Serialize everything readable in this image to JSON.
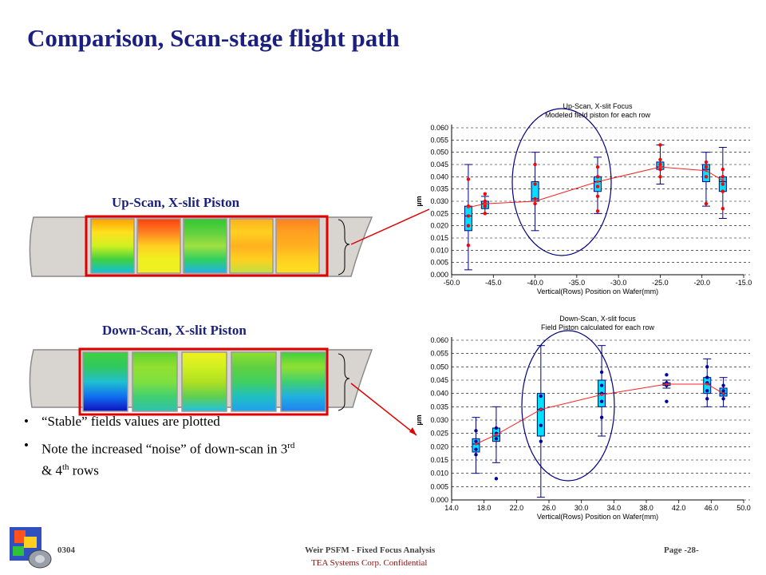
{
  "title": "Comparison, Scan-stage flight path",
  "upscan": {
    "label": "Up-Scan, X-slit Piston",
    "panels": [
      {
        "stops": [
          "#ffa000",
          "#ffe020",
          "#d0f020",
          "#40d040",
          "#10c0e0"
        ]
      },
      {
        "stops": [
          "#ff4010",
          "#ff8020",
          "#ffd020",
          "#f0f020",
          "#f0f020"
        ]
      },
      {
        "stops": [
          "#30c830",
          "#60d040",
          "#a0e040",
          "#30d060",
          "#20b0f0"
        ]
      },
      {
        "stops": [
          "#ffb020",
          "#ffd020",
          "#ffb020",
          "#ffd020",
          "#c0e040"
        ]
      },
      {
        "stops": [
          "#ff8020",
          "#ffa020",
          "#ffb020",
          "#ffd020",
          "#ffe020"
        ]
      }
    ]
  },
  "downscan": {
    "label": "Down-Scan, X-slit Piston",
    "panels": [
      {
        "stops": [
          "#40d040",
          "#30c860",
          "#20c0d0",
          "#1070f0",
          "#1010c0"
        ]
      },
      {
        "stops": [
          "#60d030",
          "#90e030",
          "#80e040",
          "#40d070",
          "#30c0b0"
        ]
      },
      {
        "stops": [
          "#f0f020",
          "#d0f020",
          "#b0e020",
          "#60d050",
          "#20c0e0"
        ]
      },
      {
        "stops": [
          "#90e030",
          "#60d040",
          "#40d060",
          "#20c0c0",
          "#20a0f0"
        ]
      },
      {
        "stops": [
          "#40d040",
          "#90e030",
          "#40d070",
          "#20b0e0",
          "#2080f0"
        ]
      }
    ]
  },
  "bullets": [
    {
      "text": "“Stable” fields values are plotted",
      "parts": []
    },
    {
      "text": "",
      "parts": [
        "Note the increased “noise” of down-scan in 3",
        "rd",
        " & 4",
        "th",
        " rows"
      ]
    }
  ],
  "footer": {
    "left": "0304",
    "center": "Weir PSFM - Fixed Focus Analysis",
    "confidential": "TEA Systems Corp. Confidential",
    "page": "Page -28-"
  },
  "colors": {
    "title": "#1a1f80",
    "highlight_box": "#e00000",
    "arrow": "#e00000",
    "box_fill": "#00e0ff",
    "box_stroke": "#000080",
    "upscan_points": "#ff0000",
    "downscan_points": "#0000a0",
    "ellipse": "#000080"
  },
  "chart_data": [
    {
      "type": "box",
      "title": "Up-Scan, X-slit Focus",
      "subtitle": "Modeled field piston for each row",
      "xlabel": "Vertical(Rows) Position on Wafer(mm)",
      "ylabel": "µm",
      "xlim": [
        -50.0,
        -15.0
      ],
      "ylim": [
        0.0,
        0.06
      ],
      "xticks": [
        "-50.0",
        "-45.0",
        "-40.0",
        "-35.0",
        "-30.0",
        "-25.0",
        "-20.0",
        "-15.0"
      ],
      "yticks": [
        "0.000",
        "0.005",
        "0.010",
        "0.015",
        "0.020",
        "0.025",
        "0.030",
        "0.035",
        "0.040",
        "0.045",
        "0.050",
        "0.055",
        "0.060"
      ],
      "grid": true,
      "boxes": [
        {
          "x": -48.0,
          "min": 0.002,
          "q1": 0.018,
          "median": 0.024,
          "q3": 0.028,
          "max": 0.045,
          "points": [
            0.012,
            0.02,
            0.024,
            0.028,
            0.039
          ]
        },
        {
          "x": -46.0,
          "min": 0.025,
          "q1": 0.027,
          "median": 0.029,
          "q3": 0.03,
          "max": 0.032,
          "points": [
            0.025,
            0.028,
            0.029,
            0.03,
            0.033
          ]
        },
        {
          "x": -40.0,
          "min": 0.018,
          "q1": 0.03,
          "median": 0.031,
          "q3": 0.038,
          "max": 0.05,
          "points": [
            0.029,
            0.031,
            0.037,
            0.045
          ]
        },
        {
          "x": -32.5,
          "min": 0.025,
          "q1": 0.034,
          "median": 0.038,
          "q3": 0.04,
          "max": 0.048,
          "points": [
            0.026,
            0.032,
            0.036,
            0.04,
            0.044
          ]
        },
        {
          "x": -25.0,
          "min": 0.037,
          "q1": 0.043,
          "median": 0.044,
          "q3": 0.046,
          "max": 0.053,
          "points": [
            0.04,
            0.043,
            0.045,
            0.047,
            0.053
          ]
        },
        {
          "x": -19.5,
          "min": 0.028,
          "q1": 0.038,
          "median": 0.043,
          "q3": 0.045,
          "max": 0.05,
          "points": [
            0.029,
            0.04,
            0.044,
            0.046
          ]
        },
        {
          "x": -17.5,
          "min": 0.023,
          "q1": 0.034,
          "median": 0.038,
          "q3": 0.04,
          "max": 0.052,
          "points": [
            0.027,
            0.034,
            0.037,
            0.04,
            0.043
          ]
        }
      ],
      "trend": [
        [
          -48.0,
          0.0275
        ],
        [
          -46.0,
          0.029
        ],
        [
          -40.0,
          0.03
        ],
        [
          -32.5,
          0.038
        ],
        [
          -25.0,
          0.044
        ],
        [
          -19.5,
          0.0425
        ],
        [
          -17.5,
          0.0385
        ]
      ]
    },
    {
      "type": "box",
      "title": "Down-Scan, X-slit focus",
      "subtitle": "Field Piston calculated for each row",
      "xlabel": "Vertical(Rows) Position on Wafer(mm)",
      "ylabel": "µm",
      "xlim": [
        14.0,
        50.0
      ],
      "ylim": [
        0.0,
        0.06
      ],
      "xticks": [
        "14.0",
        "18.0",
        "22.0",
        "26.0",
        "30.0",
        "34.0",
        "38.0",
        "42.0",
        "46.0",
        "50.0"
      ],
      "yticks": [
        "0.000",
        "0.005",
        "0.010",
        "0.015",
        "0.020",
        "0.025",
        "0.030",
        "0.035",
        "0.040",
        "0.045",
        "0.050",
        "0.055",
        "0.060"
      ],
      "grid": true,
      "boxes": [
        {
          "x": 17.0,
          "min": 0.01,
          "q1": 0.018,
          "median": 0.021,
          "q3": 0.023,
          "max": 0.031,
          "points": [
            0.017,
            0.019,
            0.022,
            0.026
          ]
        },
        {
          "x": 19.5,
          "min": 0.014,
          "q1": 0.022,
          "median": 0.024,
          "q3": 0.027,
          "max": 0.035,
          "points": [
            0.008,
            0.023,
            0.025,
            0.027
          ]
        },
        {
          "x": 25.0,
          "min": 0.001,
          "q1": 0.024,
          "median": 0.034,
          "q3": 0.04,
          "max": 0.058,
          "points": [
            0.022,
            0.028,
            0.034,
            0.039
          ]
        },
        {
          "x": 32.5,
          "min": 0.024,
          "q1": 0.035,
          "median": 0.04,
          "q3": 0.045,
          "max": 0.058,
          "points": [
            0.031,
            0.037,
            0.04,
            0.043,
            0.048
          ]
        },
        {
          "x": 40.5,
          "min": 0.042,
          "q1": 0.043,
          "median": 0.0435,
          "q3": 0.044,
          "max": 0.045,
          "points": [
            0.037,
            0.043,
            0.044,
            0.047
          ]
        },
        {
          "x": 45.5,
          "min": 0.035,
          "q1": 0.04,
          "median": 0.0435,
          "q3": 0.046,
          "max": 0.053,
          "points": [
            0.038,
            0.041,
            0.044,
            0.046,
            0.05
          ]
        },
        {
          "x": 47.5,
          "min": 0.035,
          "q1": 0.039,
          "median": 0.04,
          "q3": 0.042,
          "max": 0.046,
          "points": [
            0.038,
            0.04,
            0.041,
            0.043
          ]
        }
      ],
      "trend": [
        [
          17.0,
          0.021
        ],
        [
          19.5,
          0.0245
        ],
        [
          25.0,
          0.034
        ],
        [
          32.5,
          0.0395
        ],
        [
          40.5,
          0.0435
        ],
        [
          45.5,
          0.0435
        ],
        [
          47.5,
          0.04
        ]
      ]
    }
  ]
}
